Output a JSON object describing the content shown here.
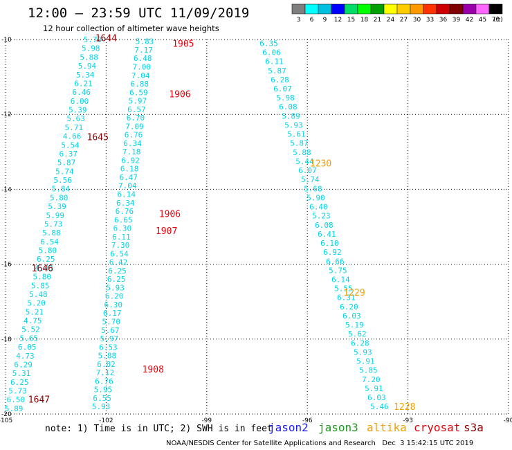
{
  "title": "12:00 – 23:59 UTC 11/09/2019",
  "subtitle": "12 hour collection of altimeter wave heights",
  "note": "note: 1) Time is in UTC; 2) SWH is in feet",
  "credit": "NOAA/NESDIS Center for Satellite Applications and Research   Dec  3 15:42:15 UTC 2019",
  "satellites": [
    {
      "name": "jason2",
      "color": "#1a1aff"
    },
    {
      "name": "jason3",
      "color": "#1b9a1b"
    },
    {
      "name": "altika",
      "color": "#f0a000"
    },
    {
      "name": "cryosat",
      "color": "#e8000b"
    },
    {
      "name": "s3a",
      "color": "#8b0000"
    }
  ],
  "colorbar": {
    "unit": "(ft)",
    "labels": [
      "3",
      "6",
      "9",
      "12",
      "15",
      "18",
      "21",
      "24",
      "27",
      "30",
      "33",
      "36",
      "39",
      "42",
      "45",
      "70"
    ],
    "colors": [
      "#7f7f7f",
      "#00ffff",
      "#00c0e0",
      "#0000ff",
      "#00dd66",
      "#00ff00",
      "#00a000",
      "#ffff00",
      "#ffcc00",
      "#ff9900",
      "#ff3300",
      "#cc0000",
      "#800000",
      "#9900aa",
      "#ff66ff",
      "#000000"
    ]
  },
  "chart_data": {
    "type": "scatter",
    "xlim": [
      -105,
      -90
    ],
    "ylim": [
      -20,
      -10
    ],
    "x_ticks": [
      -105,
      -102,
      -99,
      -96,
      -93,
      -90
    ],
    "y_ticks": [
      -10,
      -12,
      -14,
      -16,
      -18,
      -20
    ],
    "x_tick_labels": [
      "-105",
      "-102",
      "-99",
      "-96",
      "-93",
      "-90"
    ],
    "y_tick_labels": [
      "-10",
      "-12",
      "-14",
      "-16",
      "-18",
      "-20"
    ],
    "grid": true,
    "series": [
      {
        "satellite": "s3a",
        "color": "#00d4e6",
        "lon_start": -102.4,
        "lon_end": -104.75,
        "lat_start": -10.0,
        "lat_end": -19.85,
        "values": [
          5.73,
          5.98,
          5.88,
          5.94,
          5.34,
          6.21,
          6.46,
          6.0,
          5.39,
          5.63,
          5.71,
          4.66,
          5.54,
          6.37,
          5.87,
          5.74,
          5.56,
          5.84,
          5.8,
          5.39,
          5.99,
          5.73,
          5.88,
          6.54,
          5.8,
          6.25,
          4.43,
          5.8,
          5.85,
          5.48,
          5.2,
          5.21,
          4.75,
          5.52,
          5.65,
          6.05,
          4.73,
          6.29,
          5.31,
          6.25,
          5.73,
          6.5,
          5.89
        ]
      },
      {
        "satellite": "cryosat",
        "color": "#00d4e6",
        "lon_start": -100.85,
        "lon_end": -102.15,
        "lat_start": -10.05,
        "lat_end": -19.8,
        "values": [
          5.83,
          7.17,
          6.48,
          7.0,
          7.04,
          6.88,
          6.59,
          5.97,
          6.57,
          6.7,
          7.09,
          6.76,
          6.34,
          7.18,
          6.92,
          6.18,
          6.47,
          7.04,
          6.14,
          6.34,
          6.76,
          6.65,
          6.3,
          6.11,
          7.3,
          6.54,
          6.42,
          6.25,
          6.25,
          5.93,
          6.2,
          6.3,
          6.17,
          5.7,
          5.67,
          5.97,
          6.53,
          5.88,
          6.82,
          7.12,
          6.76,
          5.95,
          6.55,
          5.93
        ]
      },
      {
        "satellite": "altika",
        "color": "#00d4e6",
        "lon_start": -97.15,
        "lon_end": -93.85,
        "lat_start": -10.1,
        "lat_end": -19.8,
        "values": [
          6.35,
          6.06,
          6.11,
          5.87,
          6.28,
          6.07,
          5.98,
          6.08,
          5.89,
          5.93,
          5.61,
          5.87,
          5.88,
          5.44,
          6.07,
          5.74,
          5.68,
          5.9,
          6.4,
          5.23,
          6.08,
          6.41,
          6.1,
          6.92,
          6.66,
          5.75,
          6.14,
          5.55,
          6.31,
          6.2,
          6.03,
          5.19,
          5.62,
          6.28,
          5.93,
          5.91,
          5.85,
          7.2,
          5.91,
          6.03,
          5.46
        ]
      }
    ],
    "time_labels": [
      {
        "text": "1644",
        "lon": -102.0,
        "lat": -9.95,
        "color": "#8b0000"
      },
      {
        "text": "1645",
        "lon": -102.25,
        "lat": -12.6,
        "color": "#8b0000"
      },
      {
        "text": "1646",
        "lon": -103.9,
        "lat": -16.1,
        "color": "#8b0000"
      },
      {
        "text": "1647",
        "lon": -104.0,
        "lat": -19.6,
        "color": "#8b0000"
      },
      {
        "text": "1905",
        "lon": -99.7,
        "lat": -10.1,
        "color": "#e8000b"
      },
      {
        "text": "1906",
        "lon": -99.8,
        "lat": -11.45,
        "color": "#e8000b"
      },
      {
        "text": "1906",
        "lon": -100.1,
        "lat": -14.65,
        "color": "#e8000b"
      },
      {
        "text": "1907",
        "lon": -100.2,
        "lat": -15.1,
        "color": "#e8000b"
      },
      {
        "text": "1908",
        "lon": -100.6,
        "lat": -18.8,
        "color": "#e8000b"
      },
      {
        "text": "1230",
        "lon": -95.6,
        "lat": -13.3,
        "color": "#f0a000"
      },
      {
        "text": "1229",
        "lon": -94.6,
        "lat": -16.75,
        "color": "#f0a000"
      },
      {
        "text": "1228",
        "lon": -93.1,
        "lat": -19.8,
        "color": "#f0a000"
      }
    ]
  }
}
